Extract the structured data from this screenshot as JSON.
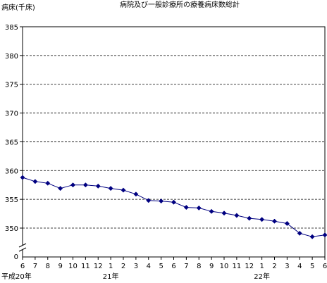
{
  "chart_data": {
    "type": "line",
    "title": "病院及び一般診療所の療養病床数総計",
    "ylabel": "病床(千床)",
    "xlabel": "",
    "ylim": [
      345,
      385
    ],
    "yticks": [
      385,
      380,
      375,
      370,
      365,
      360,
      355,
      350
    ],
    "y_zero_label": "0",
    "y_axis_break": true,
    "grid": "horizontal-dashed",
    "legend": "none",
    "categories": [
      "6",
      "7",
      "8",
      "9",
      "10",
      "11",
      "12",
      "1",
      "2",
      "3",
      "4",
      "5",
      "6",
      "7",
      "8",
      "9",
      "10",
      "11",
      "12",
      "1",
      "2",
      "3",
      "4",
      "5",
      "6"
    ],
    "year_labels": [
      {
        "index": 0,
        "label": "平成20年"
      },
      {
        "index": 7,
        "label": "21年"
      },
      {
        "index": 19,
        "label": "22年"
      }
    ],
    "series": [
      {
        "color": "#000080",
        "values": [
          358.8,
          358.1,
          357.8,
          356.9,
          357.5,
          357.5,
          357.3,
          356.9,
          356.6,
          355.9,
          354.8,
          354.7,
          354.5,
          353.6,
          353.5,
          352.9,
          352.6,
          352.2,
          351.7,
          351.5,
          351.2,
          350.8,
          349.1,
          348.5,
          348.8
        ]
      }
    ]
  }
}
